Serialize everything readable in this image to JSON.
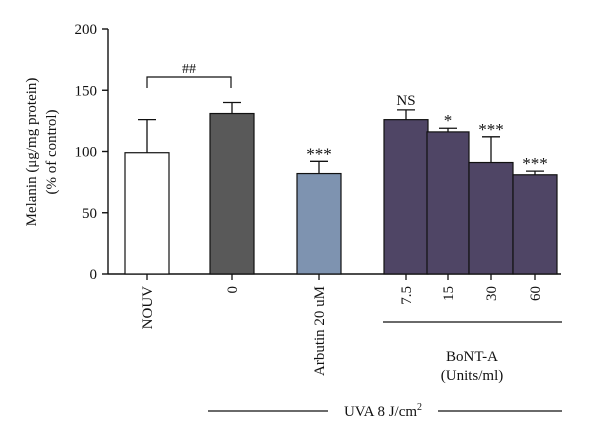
{
  "chart_data": {
    "type": "bar",
    "ylabel_line1": "Melanin (μg/mg protein)",
    "ylabel_line2": "(% of control)",
    "ylim": [
      0,
      200
    ],
    "yticks": [
      0,
      50,
      100,
      150,
      200
    ],
    "grid": false,
    "legend": "none",
    "bars": [
      {
        "label": "NOUV",
        "value": 99,
        "error": 27,
        "color": "#ffffff",
        "annotation": ""
      },
      {
        "label": "0",
        "value": 131,
        "error": 9,
        "color": "#595959",
        "annotation": ""
      },
      {
        "label": "Arbutin 20 uM",
        "value": 82,
        "error": 10,
        "color": "#7e93b0",
        "annotation": "***"
      },
      {
        "label": "7.5",
        "value": 126,
        "error": 8,
        "color": "#4f4565",
        "annotation": "NS"
      },
      {
        "label": "15",
        "value": 116,
        "error": 3,
        "color": "#4f4565",
        "annotation": "*"
      },
      {
        "label": "30",
        "value": 91,
        "error": 21,
        "color": "#4f4565",
        "annotation": "***"
      },
      {
        "label": "60",
        "value": 81,
        "error": 3,
        "color": "#4f4565",
        "annotation": "***"
      }
    ],
    "comparison_label": "##",
    "group_label_line1": "BoNT-A",
    "group_label_line2": "(Units/ml)",
    "uva_label_prefix": "UVA 8 J/cm",
    "uva_label_sup": "2"
  }
}
